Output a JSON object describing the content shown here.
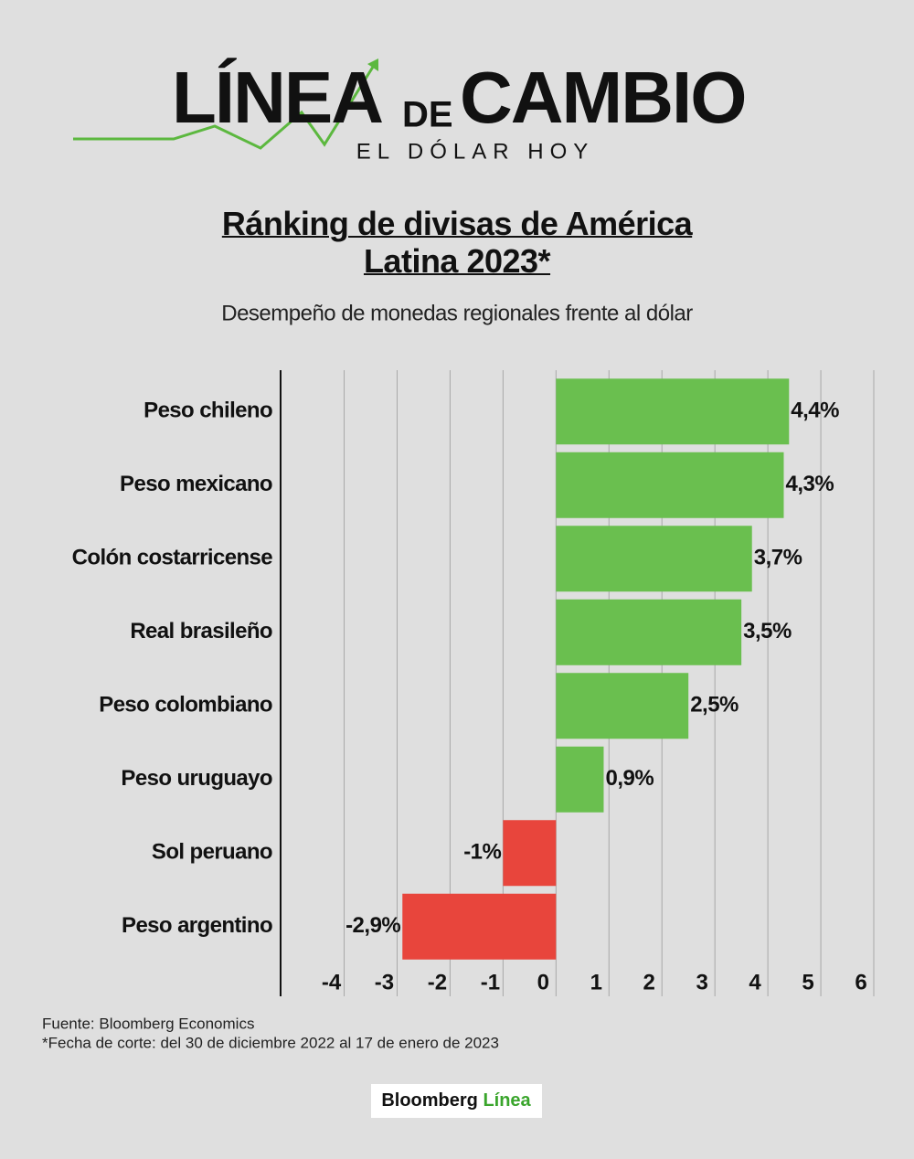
{
  "header": {
    "logo_word_1": "LÍNEA",
    "logo_word_2": "DE",
    "logo_word_3": "CAMBIO",
    "tagline": "EL DÓLAR HOY"
  },
  "chart_data": {
    "type": "bar",
    "orientation": "horizontal",
    "title": "Ránking de divisas de América Latina 2023*",
    "subtitle": "Desempeño de monedas regionales frente al dólar",
    "categories": [
      "Peso chileno",
      "Peso mexicano",
      "Colón costarricense",
      "Real brasileño",
      "Peso colombiano",
      "Peso uruguayo",
      "Sol peruano",
      "Peso argentino"
    ],
    "values": [
      4.4,
      4.3,
      3.7,
      3.5,
      2.5,
      0.9,
      -1,
      -2.9
    ],
    "value_labels": [
      "4,4%",
      "4,3%",
      "3,7%",
      "3,5%",
      "2,5%",
      "0,9%",
      "-1%",
      "-2,9%"
    ],
    "colors": [
      "#6abf4f",
      "#6abf4f",
      "#6abf4f",
      "#6abf4f",
      "#6abf4f",
      "#6abf4f",
      "#e8453c",
      "#e8453c"
    ],
    "xlim": [
      -5.2,
      6
    ],
    "xticks": [
      -4,
      -3,
      -2,
      -1,
      0,
      1,
      2,
      3,
      4,
      5,
      6
    ],
    "grid": true
  },
  "footer": {
    "source": "Fuente: Bloomberg Economics",
    "note": "*Fecha de corte: del 30 de diciembre 2022  al 17 de enero de 2023",
    "brand_1": "Bloomberg",
    "brand_2": "Línea"
  }
}
